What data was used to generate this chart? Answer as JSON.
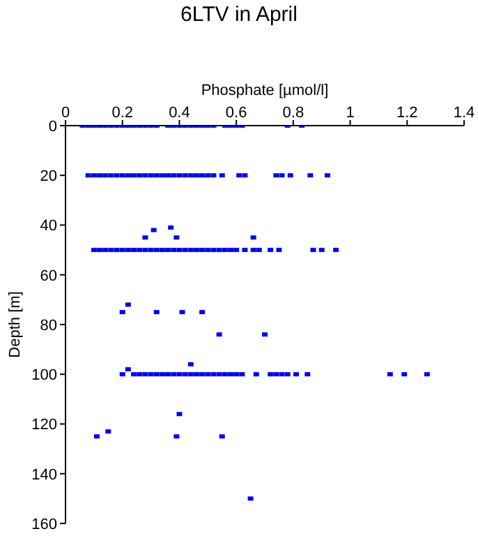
{
  "chart_data": {
    "type": "scatter",
    "title": "6LTV in April",
    "xlabel": "Phosphate [µmol/l]",
    "ylabel": "Depth [m]",
    "xlim": [
      0,
      1.4
    ],
    "xticks": [
      0,
      0.2,
      0.4,
      0.6,
      0.8,
      1,
      1.2,
      1.4
    ],
    "ylim": [
      160,
      0
    ],
    "yticks": [
      0,
      20,
      40,
      60,
      80,
      100,
      120,
      140,
      160
    ],
    "grid": false,
    "legend": false,
    "marker": "square",
    "series": [
      {
        "color": "#0000ff",
        "x": [
          0.06,
          0.08,
          0.1,
          0.12,
          0.14,
          0.16,
          0.18,
          0.2,
          0.22,
          0.24,
          0.26,
          0.28,
          0.3,
          0.32,
          0.36,
          0.38,
          0.4,
          0.42,
          0.44,
          0.46,
          0.48,
          0.5,
          0.52,
          0.56,
          0.58,
          0.6,
          0.62,
          0.78,
          0.83
        ],
        "values": [
          0,
          0,
          0,
          0,
          0,
          0,
          0,
          0,
          0,
          0,
          0,
          0,
          0,
          0,
          0,
          0,
          0,
          0,
          0,
          0,
          0,
          0,
          0,
          0,
          0,
          0,
          0,
          0,
          0
        ]
      },
      {
        "color": "#0000ff",
        "x": [
          0.08,
          0.1,
          0.12,
          0.14,
          0.16,
          0.18,
          0.2,
          0.22,
          0.24,
          0.26,
          0.28,
          0.3,
          0.32,
          0.34,
          0.36,
          0.38,
          0.4,
          0.42,
          0.44,
          0.46,
          0.48,
          0.5,
          0.52,
          0.55,
          0.61,
          0.63,
          0.74,
          0.76,
          0.79,
          0.86,
          0.92
        ],
        "values": [
          20,
          20,
          20,
          20,
          20,
          20,
          20,
          20,
          20,
          20,
          20,
          20,
          20,
          20,
          20,
          20,
          20,
          20,
          20,
          20,
          20,
          20,
          20,
          20,
          20,
          20,
          20,
          20,
          20,
          20,
          20
        ]
      },
      {
        "color": "#0000ff",
        "x": [
          0.1,
          0.12,
          0.14,
          0.16,
          0.18,
          0.2,
          0.22,
          0.24,
          0.26,
          0.28,
          0.3,
          0.32,
          0.34,
          0.36,
          0.38,
          0.4,
          0.42,
          0.44,
          0.46,
          0.48,
          0.5,
          0.52,
          0.54,
          0.56,
          0.58,
          0.6,
          0.63,
          0.66,
          0.68,
          0.72,
          0.75,
          0.87,
          0.9,
          0.95
        ],
        "values": [
          50,
          50,
          50,
          50,
          50,
          50,
          50,
          50,
          50,
          50,
          50,
          50,
          50,
          50,
          50,
          50,
          50,
          50,
          50,
          50,
          50,
          50,
          50,
          50,
          50,
          50,
          50,
          50,
          50,
          50,
          50,
          50,
          50,
          50
        ]
      },
      {
        "color": "#0000ff",
        "x": [
          0.2,
          0.24,
          0.26,
          0.28,
          0.3,
          0.32,
          0.34,
          0.36,
          0.38,
          0.4,
          0.42,
          0.44,
          0.46,
          0.48,
          0.5,
          0.52,
          0.54,
          0.56,
          0.58,
          0.6,
          0.62,
          0.67,
          0.72,
          0.74,
          0.76,
          0.78,
          0.81,
          0.85,
          1.14,
          1.19,
          1.27
        ],
        "values": [
          100,
          100,
          100,
          100,
          100,
          100,
          100,
          100,
          100,
          100,
          100,
          100,
          100,
          100,
          100,
          100,
          100,
          100,
          100,
          100,
          100,
          100,
          100,
          100,
          100,
          100,
          100,
          100,
          100,
          100,
          100
        ]
      },
      {
        "color": "#0000ff",
        "x": [
          0.28,
          0.39,
          0.66,
          0.31,
          0.37,
          0.2,
          0.32,
          0.41,
          0.48,
          0.22,
          0.54,
          0.7,
          0.44,
          0.22,
          0.4,
          0.15,
          0.11,
          0.39,
          0.55,
          0.65
        ],
        "values": [
          45,
          45,
          45,
          42,
          41,
          75,
          75,
          75,
          75,
          72,
          84,
          84,
          96,
          98,
          116,
          123,
          125,
          125,
          125,
          150
        ]
      }
    ]
  }
}
